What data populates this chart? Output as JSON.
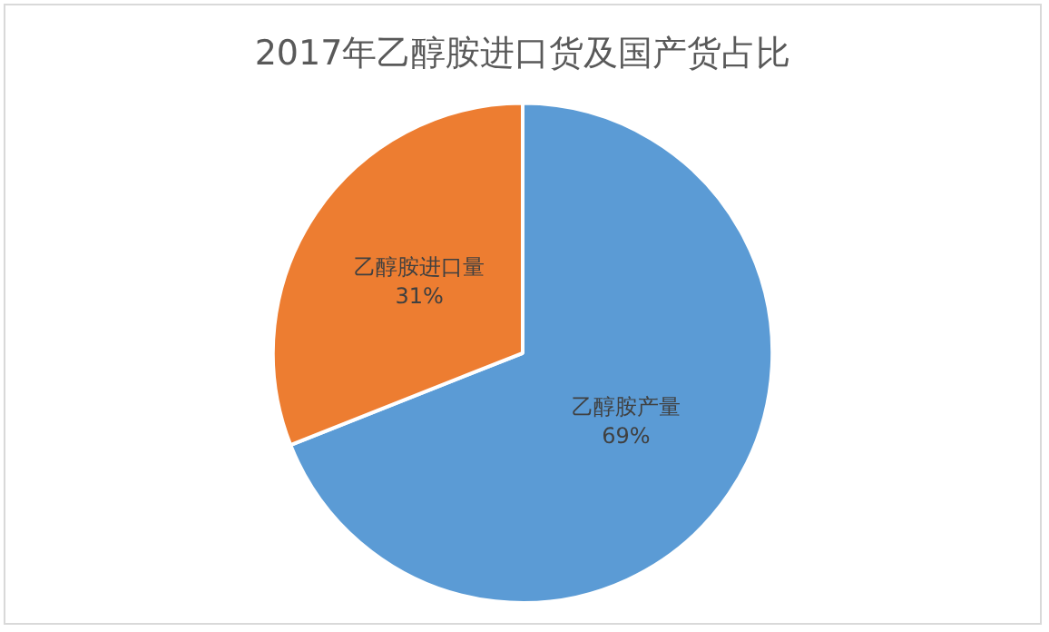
{
  "chart_data": {
    "type": "pie",
    "title": "2017年乙醇胺进口货及国产货占比",
    "categories": [
      "乙醇胺产量",
      "乙醇胺进口量"
    ],
    "values": [
      69,
      31
    ],
    "colors": [
      "#5b9bd5",
      "#ed7d31"
    ],
    "value_labels": [
      "69%",
      "31%"
    ],
    "legend": false
  }
}
